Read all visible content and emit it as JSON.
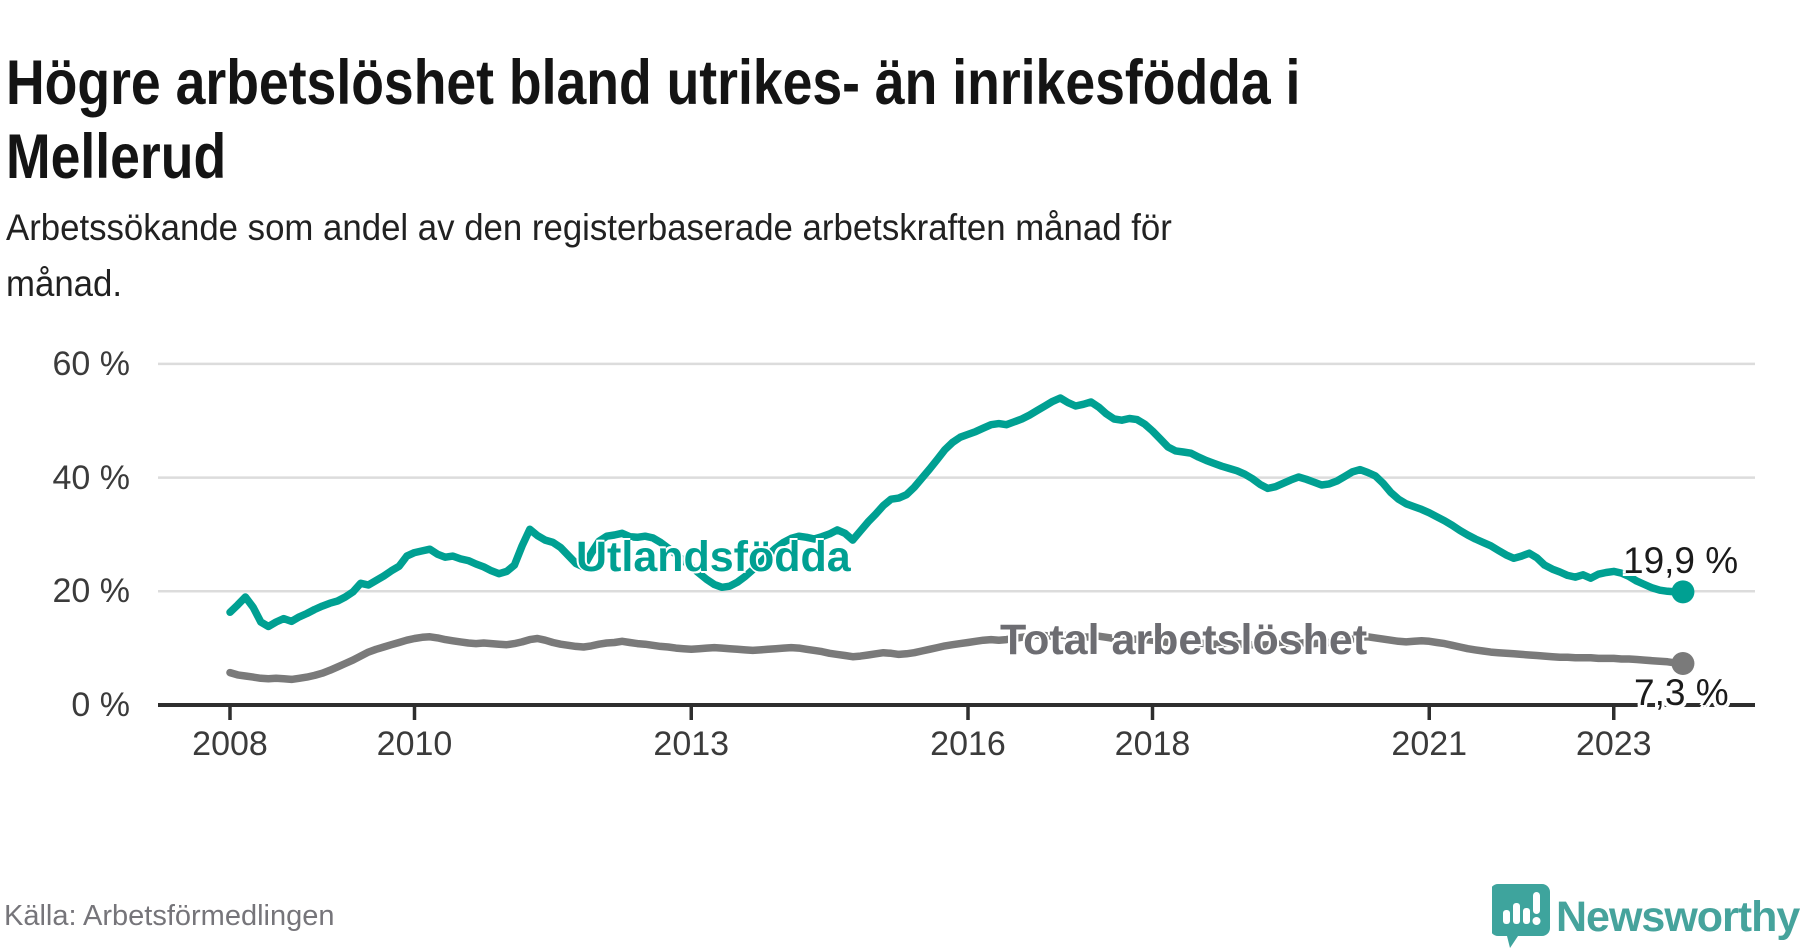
{
  "header": {
    "title_lines": [
      "Högre arbetslöshet bland utrikes- än inrikesfödda i",
      "Mellerud"
    ],
    "subtitle_lines": [
      "Arbetssökande som andel av den registerbaserade arbetskraften månad för",
      "månad."
    ]
  },
  "source": {
    "label": "Källa: Arbetsförmedlingen"
  },
  "logo": {
    "brand": "Newsworthy",
    "icon": "newsworthy-speech-bubble-bar-chart-icon",
    "color": "#3ea49d"
  },
  "chart_data": {
    "type": "line",
    "title": "Högre arbetslöshet bland utrikes- än inrikesfödda i Mellerud",
    "subtitle": "Arbetssökande som andel av den registerbaserade arbetskraften månad för månad.",
    "xlabel": "",
    "ylabel": "",
    "grid": true,
    "x_frequency": "monthly",
    "x_start": "2008-01",
    "x_end": "2023-10",
    "x_axis": {
      "tick_years": [
        2008,
        2010,
        2013,
        2016,
        2018,
        2021,
        2023
      ]
    },
    "y_axis": {
      "tick_labels": [
        "0 %",
        "20 %",
        "40 %",
        "60 %"
      ],
      "tick_values": [
        0,
        20,
        40,
        60
      ],
      "range": [
        0,
        62
      ]
    },
    "colors": {
      "gridline": "#dcdcdc",
      "axis": "#2e2e2e",
      "tick_text": "#3b3b3b"
    },
    "series": [
      {
        "name": "Utlandsfödda",
        "color": "#00a092",
        "end_label": "19,9 %",
        "end_value": 19.9,
        "values": [
          16.3,
          17.6,
          19.0,
          17.2,
          14.6,
          13.8,
          14.6,
          15.2,
          14.7,
          15.5,
          16.1,
          16.8,
          17.4,
          17.9,
          18.3,
          19.0,
          19.9,
          21.4,
          21.1,
          21.9,
          22.7,
          23.6,
          24.4,
          26.2,
          26.8,
          27.1,
          27.4,
          26.5,
          26.0,
          26.2,
          25.7,
          25.4,
          24.8,
          24.3,
          23.6,
          23.1,
          23.5,
          24.6,
          28.0,
          30.9,
          29.8,
          29.0,
          28.6,
          27.7,
          26.3,
          24.9,
          24.3,
          26.7,
          28.8,
          29.7,
          29.9,
          30.2,
          29.6,
          29.5,
          29.7,
          29.4,
          28.6,
          27.6,
          26.5,
          25.4,
          24.3,
          23.2,
          22.1,
          21.2,
          20.7,
          20.9,
          21.6,
          22.6,
          23.8,
          25.1,
          26.4,
          27.6,
          28.6,
          29.3,
          29.7,
          29.5,
          29.2,
          29.6,
          30.1,
          30.8,
          30.2,
          29.0,
          30.6,
          32.2,
          33.6,
          35.1,
          36.2,
          36.4,
          37.0,
          38.3,
          39.9,
          41.5,
          43.2,
          44.9,
          46.2,
          47.1,
          47.6,
          48.1,
          48.7,
          49.3,
          49.5,
          49.3,
          49.8,
          50.3,
          51.0,
          51.8,
          52.6,
          53.4,
          54.0,
          53.2,
          52.6,
          52.9,
          53.3,
          52.4,
          51.2,
          50.3,
          50.1,
          50.4,
          50.2,
          49.4,
          48.2,
          46.8,
          45.4,
          44.7,
          44.5,
          44.3,
          43.6,
          43.0,
          42.5,
          42.0,
          41.6,
          41.2,
          40.6,
          39.8,
          38.8,
          38.1,
          38.4,
          39.0,
          39.6,
          40.1,
          39.7,
          39.2,
          38.7,
          38.9,
          39.4,
          40.2,
          41.0,
          41.4,
          40.9,
          40.3,
          39.0,
          37.4,
          36.2,
          35.4,
          34.9,
          34.4,
          33.8,
          33.1,
          32.4,
          31.6,
          30.7,
          29.9,
          29.2,
          28.6,
          28.0,
          27.2,
          26.4,
          25.8,
          26.2,
          26.7,
          25.9,
          24.6,
          23.9,
          23.4,
          22.8,
          22.5,
          22.9,
          22.3,
          23.0,
          23.3,
          23.5,
          23.2,
          22.6,
          21.8,
          21.2,
          20.6,
          20.2,
          20.0,
          19.9,
          19.9
        ]
      },
      {
        "name": "Total arbetslöshet",
        "color": "#7a7a7a",
        "end_label": "7,3 %",
        "end_value": 7.3,
        "values": [
          5.7,
          5.3,
          5.1,
          4.9,
          4.7,
          4.6,
          4.7,
          4.6,
          4.5,
          4.7,
          4.9,
          5.2,
          5.6,
          6.1,
          6.7,
          7.3,
          7.9,
          8.6,
          9.3,
          9.8,
          10.2,
          10.6,
          11.0,
          11.4,
          11.7,
          11.9,
          12.0,
          11.8,
          11.5,
          11.3,
          11.1,
          10.9,
          10.8,
          10.9,
          10.8,
          10.7,
          10.6,
          10.8,
          11.1,
          11.5,
          11.7,
          11.4,
          11.0,
          10.7,
          10.5,
          10.3,
          10.2,
          10.4,
          10.7,
          10.9,
          11.0,
          11.2,
          11.0,
          10.8,
          10.7,
          10.5,
          10.3,
          10.2,
          10.0,
          9.9,
          9.8,
          9.9,
          10.0,
          10.1,
          10.0,
          9.9,
          9.8,
          9.7,
          9.6,
          9.7,
          9.8,
          9.9,
          10.0,
          10.1,
          10.0,
          9.8,
          9.6,
          9.4,
          9.1,
          8.9,
          8.7,
          8.5,
          8.6,
          8.8,
          9.0,
          9.2,
          9.1,
          8.9,
          9.0,
          9.2,
          9.5,
          9.8,
          10.1,
          10.4,
          10.6,
          10.8,
          11.0,
          11.2,
          11.4,
          11.5,
          11.4,
          11.5,
          11.7,
          11.9,
          12.1,
          12.3,
          12.2,
          12.1,
          12.3,
          12.2,
          12.0,
          11.9,
          12.0,
          12.1,
          11.9,
          11.7,
          11.6,
          11.5,
          11.6,
          11.5,
          11.4,
          11.2,
          11.0,
          10.9,
          11.0,
          11.1,
          10.9,
          10.8,
          10.7,
          10.8,
          10.9,
          10.8,
          10.7,
          10.6,
          10.5,
          10.6,
          10.7,
          10.8,
          10.9,
          11.0,
          10.9,
          10.8,
          10.9,
          11.0,
          11.1,
          11.3,
          11.6,
          11.9,
          12.0,
          11.8,
          11.6,
          11.4,
          11.2,
          11.1,
          11.2,
          11.3,
          11.2,
          11.0,
          10.8,
          10.5,
          10.2,
          9.9,
          9.7,
          9.5,
          9.3,
          9.2,
          9.1,
          9.0,
          8.9,
          8.8,
          8.7,
          8.6,
          8.5,
          8.4,
          8.4,
          8.3,
          8.3,
          8.3,
          8.2,
          8.2,
          8.2,
          8.1,
          8.1,
          8.0,
          7.9,
          7.8,
          7.7,
          7.6,
          7.4,
          7.3
        ]
      }
    ]
  }
}
